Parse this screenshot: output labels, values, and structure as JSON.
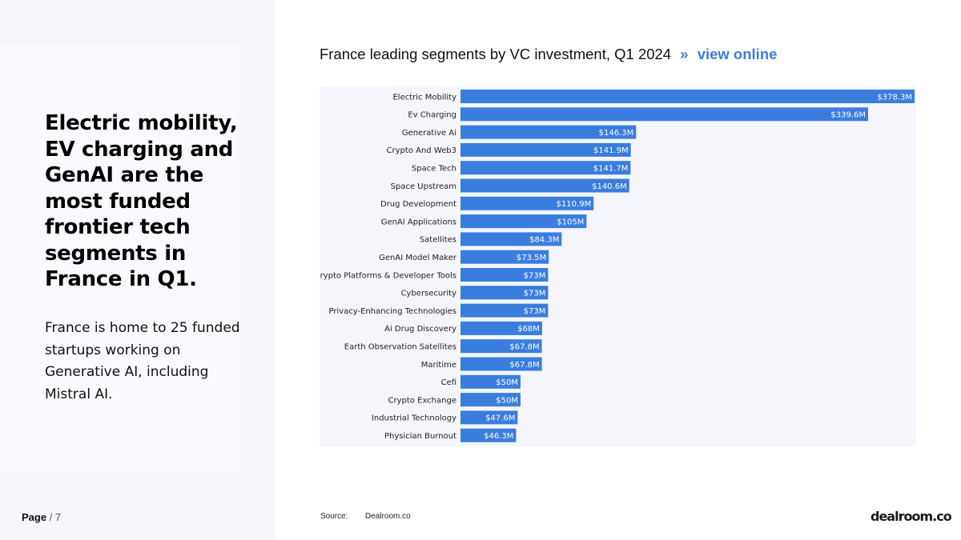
{
  "headline": "Electric mobility, EV charging and GenAI are the most funded frontier tech segments in France in Q1.",
  "body": "France is home to 25 funded startups working on Generative AI, including Mistral AI.",
  "footer": {
    "page_label": "Page",
    "page_total": "/ 7",
    "source_label": "Source:",
    "source_value": "Dealroom.co",
    "logo": "dealroom.co"
  },
  "chart_header": {
    "title": "France leading segments by VC investment, Q1 2024",
    "separator": "»",
    "link": "view online"
  },
  "colors": {
    "bar": "#3b7ddd",
    "plot_bg": "#f4f6fb",
    "link": "#3b7ddd"
  },
  "chart_data": {
    "type": "bar",
    "orientation": "horizontal",
    "title": "France leading segments by VC investment, Q1 2024",
    "xlabel": "",
    "ylabel": "",
    "unit": "$M",
    "grid": false,
    "categories": [
      "Electric Mobility",
      "Ev Charging",
      "Generative Ai",
      "Crypto And Web3",
      "Space Tech",
      "Space Upstream",
      "Drug Development",
      "GenAI Applications",
      "Satellites",
      "GenAI Model Maker",
      "Crypto Platforms & Developer Tools",
      "Cybersecurity",
      "Privacy-Enhancing Technologies",
      "Ai Drug Discovery",
      "Earth Observation Satellites",
      "Maritime",
      "Cefi",
      "Crypto Exchange",
      "Industrial Technology",
      "Physician Burnout"
    ],
    "values": [
      378.3,
      339.6,
      146.3,
      141.9,
      141.7,
      140.6,
      110.9,
      105,
      84.3,
      73.5,
      73,
      73,
      73,
      68,
      67.8,
      67.8,
      50,
      50,
      47.6,
      46.3
    ],
    "value_labels": [
      "$378.3M",
      "$339.6M",
      "$146.3M",
      "$141.9M",
      "$141.7M",
      "$140.6M",
      "$110.9M",
      "$105M",
      "$84.3M",
      "$73.5M",
      "$73M",
      "$73M",
      "$73M",
      "$68M",
      "$67.8M",
      "$67.8M",
      "$50M",
      "$50M",
      "$47.6M",
      "$46.3M"
    ],
    "xlim": [
      0,
      378.3
    ]
  }
}
